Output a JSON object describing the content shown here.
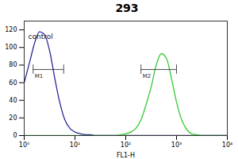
{
  "chart_data": {
    "type": "line",
    "title": "293",
    "x_label": "FL1-H",
    "log": "x",
    "grid": false,
    "x": [
      1,
      1.3,
      1.6,
      2,
      2.5,
      3.2,
      4,
      5,
      6.3,
      8,
      10,
      13,
      16,
      20,
      25,
      32,
      40,
      50,
      63,
      79,
      100,
      126,
      158,
      200,
      251,
      316,
      398,
      501,
      631,
      794,
      1000,
      1259,
      1585,
      1995,
      2512,
      3162,
      5000,
      10000
    ],
    "series": [
      {
        "color": "#2a2a9c",
        "values": [
          60,
          85,
          105,
          118,
          115,
          95,
          65,
          38,
          18,
          8,
          4,
          2,
          1,
          1,
          0,
          0,
          0,
          0,
          0,
          0,
          0,
          0,
          0,
          0,
          0,
          0,
          0,
          0,
          0,
          0,
          0,
          0,
          0,
          0,
          0,
          0,
          0,
          0
        ]
      },
      {
        "color": "#33cc33",
        "values": [
          0,
          0,
          0,
          0,
          0,
          0,
          0,
          0,
          0,
          0,
          0,
          0,
          0,
          0,
          0,
          0,
          0,
          0,
          0,
          1,
          2,
          4,
          8,
          18,
          35,
          55,
          80,
          93,
          88,
          65,
          38,
          18,
          7,
          2,
          1,
          0,
          0,
          0
        ]
      }
    ],
    "xlim": [
      1,
      10000
    ],
    "xticks": [
      {
        "value": 1,
        "label": "10⁰"
      },
      {
        "value": 10,
        "label": "10¹"
      },
      {
        "value": 100,
        "label": "10²"
      },
      {
        "value": 1000,
        "label": "10³"
      },
      {
        "value": 10000,
        "label": "10⁴"
      }
    ],
    "ylim": [
      0,
      130
    ],
    "yticks": [
      0,
      20,
      40,
      60,
      80,
      100,
      120
    ],
    "annotations": [
      {
        "text": "control",
        "x": 1.2,
        "y": 112
      },
      {
        "text": "M1",
        "x": [
          1.5,
          6
        ],
        "y": 75
      },
      {
        "text": "M2",
        "x": [
          200,
          1000
        ],
        "y": 75
      }
    ]
  }
}
